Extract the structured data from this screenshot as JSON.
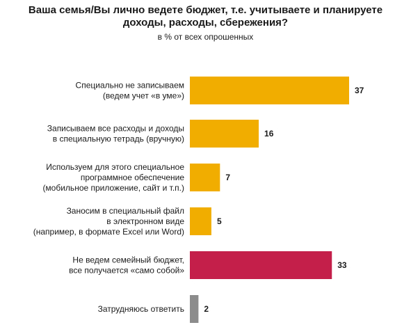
{
  "chart_data": {
    "type": "bar",
    "orientation": "horizontal",
    "title_lines": [
      "Ваша семья/Вы лично ведете бюджет, т.е. учитываете и планируете",
      "доходы, расходы, сбережения?"
    ],
    "subtitle": "в % от всех опрошенных",
    "categories": [
      [
        "Специально не записываем",
        "(ведем учет «в уме»)"
      ],
      [
        "Записываем все расходы и доходы",
        "в специальную тетрадь (вручную)"
      ],
      [
        "Используем для этого специальное",
        "программное обеспечение",
        "(мобильное приложение, сайт и т.п.)"
      ],
      [
        "Заносим в специальный файл",
        "в электронном виде",
        "(например, в формате Excel или Word)"
      ],
      [
        "Не ведем семейный бюджет,",
        "все получается «само собой»"
      ],
      [
        "Затрудняюсь ответить"
      ]
    ],
    "values": [
      37,
      16,
      7,
      5,
      33,
      2
    ],
    "value_labels": [
      "37",
      "16",
      "7",
      "5",
      "33",
      "2"
    ],
    "bar_colors": [
      "#F2AE00",
      "#F2AE00",
      "#F2AE00",
      "#F2AE00",
      "#C41E4A",
      "#8C8C8C"
    ],
    "xlim": [
      0,
      37
    ],
    "grid": false,
    "legend": "none"
  }
}
